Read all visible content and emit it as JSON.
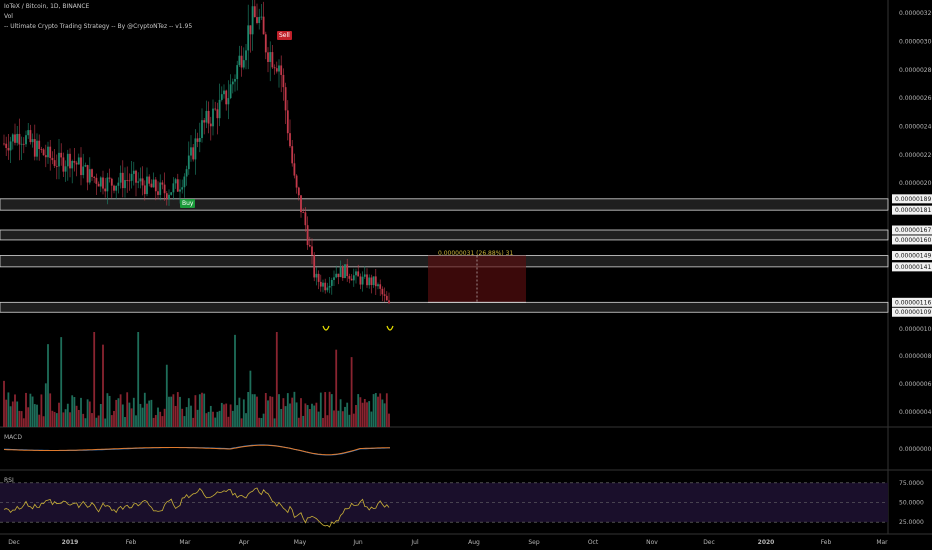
{
  "header": {
    "symbol_line": "IoTeX / Bitcoin, 1D, BINANCE",
    "vol_label": "Vol",
    "strategy_label": "-- Ultimate Crypto Trading Strategy -- By @CryptoNTez -- v1.95"
  },
  "signals": {
    "buy": "Buy",
    "sell": "Sell"
  },
  "measure": {
    "label": "0.00000031 (26.88%) 31"
  },
  "macd": {
    "label": "MACD",
    "ticks": [
      "0.00000000"
    ],
    "colors": {
      "macd": "#2f7fd6",
      "signal": "#e07a2c"
    }
  },
  "rsi": {
    "label": "RSI",
    "ticks": [
      "75.0000",
      "50.0000",
      "25.0000"
    ],
    "color": "#c9b037",
    "band": "#1a0f2b"
  },
  "volume": {
    "label": "Vol",
    "up_color": "#1e6e5a",
    "down_color": "#8a2430"
  },
  "zones": {
    "fill": "#bfbfbf",
    "levels": [
      "0.00000189",
      "0.00000181",
      "0.00000167",
      "0.00000160",
      "0.00000149",
      "0.00000141",
      "0.00000116",
      "0.00000109"
    ]
  },
  "chart_data": {
    "type": "candlestick",
    "x_ticks": [
      "Dec",
      "2019",
      "Feb",
      "Mar",
      "Apr",
      "May",
      "Jun",
      "Jul",
      "Aug",
      "Sep",
      "Oct",
      "Nov",
      "Dec",
      "2020",
      "Feb",
      "Mar"
    ],
    "y_ticks": [
      "0.00000320",
      "0.00000300",
      "0.00000280",
      "0.00000260",
      "0.00000240",
      "0.00000220",
      "0.00000200",
      "0.00000100",
      "0.00000080",
      "0.00000060",
      "0.00000040"
    ],
    "price_range": [
      1e-06,
      3.25e-06
    ],
    "price_path": [
      [
        "Dec",
        2.3e-06
      ],
      [
        "2019",
        2.15e-06
      ],
      [
        "Feb",
        2.05e-06
      ],
      [
        "Feb",
        1.9e-06
      ],
      [
        "Mar",
        1.85e-06
      ],
      [
        "Mar",
        2.3e-06
      ],
      [
        "Apr",
        2.9e-06
      ],
      [
        "Apr",
        3.2e-06
      ],
      [
        "Apr",
        3e-06
      ],
      [
        "Apr",
        2.6e-06
      ],
      [
        "May",
        1.9e-06
      ],
      [
        "May",
        1.3e-06
      ],
      [
        "Jun",
        1.25e-06
      ],
      [
        "Jun",
        1.2e-06
      ],
      [
        "Jun",
        1.1e-06
      ]
    ],
    "series": [
      {
        "name": "Vol",
        "type": "volume"
      },
      {
        "name": "MACD",
        "type": "line"
      },
      {
        "name": "RSI",
        "type": "line"
      }
    ],
    "annotations": [
      "Buy",
      "Sell",
      "0.00000031 (26.88%) 31"
    ],
    "grid": false
  }
}
